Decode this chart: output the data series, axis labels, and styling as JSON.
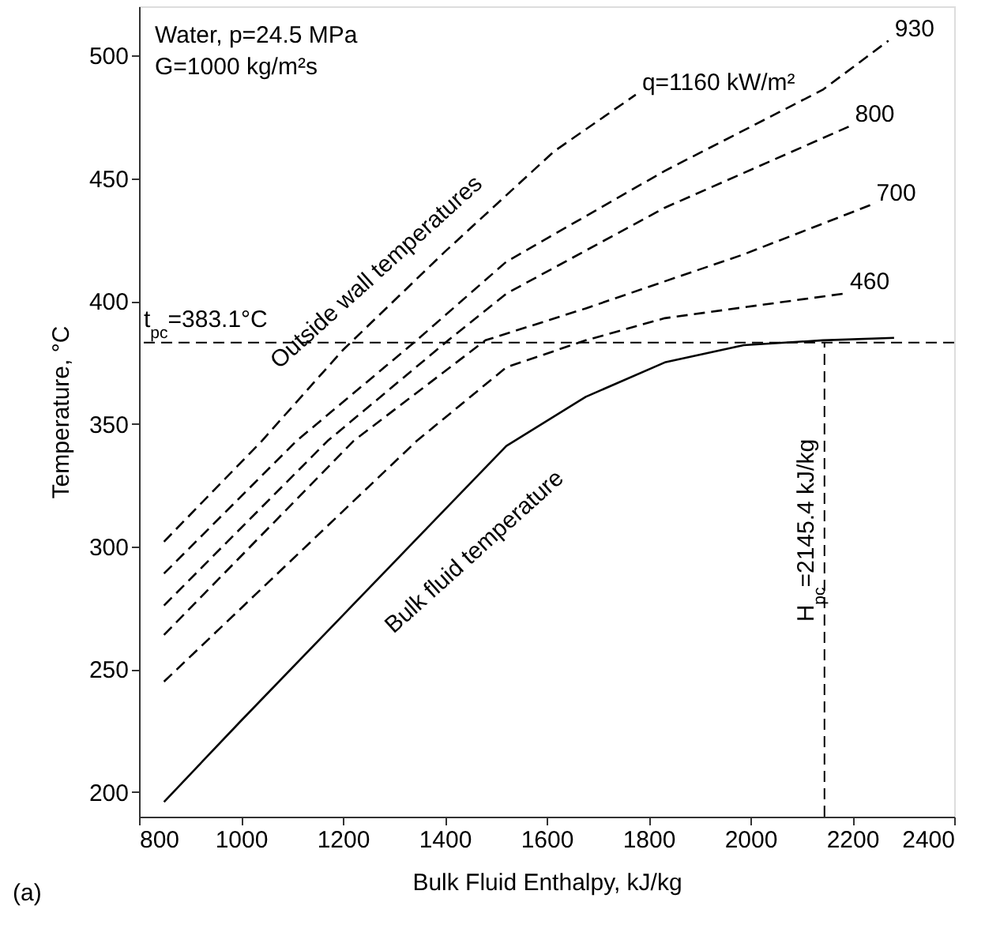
{
  "chart_data": {
    "type": "line",
    "xlabel": "Bulk Fluid Enthalpy, kJ/kg",
    "ylabel": "Temperature, °C",
    "xlim": [
      800,
      2400
    ],
    "xticks": [
      800,
      1000,
      1200,
      1400,
      1600,
      1800,
      2000,
      2200,
      2400
    ],
    "ylim": [
      190,
      520
    ],
    "yticks": [
      200,
      250,
      300,
      350,
      400,
      450,
      500
    ],
    "grid": false,
    "marker": "none",
    "series": [
      {
        "name": "q=1160 kW/m²",
        "color": "#000000",
        "line_style": "dashed",
        "x": [
          849,
          1041,
          1200,
          1400,
          1615,
          1775
        ],
        "values": [
          302,
          343,
          380,
          420,
          461,
          484
        ]
      },
      {
        "name": "930",
        "color": "#000000",
        "line_style": "dashed",
        "x": [
          849,
          1109,
          1345,
          1521,
          1832,
          2142,
          2271
        ],
        "values": [
          289,
          343,
          384,
          416,
          453,
          486,
          506
        ]
      },
      {
        "name": "800",
        "color": "#000000",
        "line_style": "dashed",
        "x": [
          849,
          1170,
          1407,
          1521,
          1832,
          2193
        ],
        "values": [
          276,
          343,
          384,
          403,
          438,
          471
        ]
      },
      {
        "name": "700",
        "color": "#000000",
        "line_style": "dashed",
        "x": [
          849,
          1221,
          1480,
          1677,
          1987,
          2235
        ],
        "values": [
          264,
          343,
          384,
          397,
          419,
          439
        ]
      },
      {
        "name": "460",
        "color": "#000000",
        "line_style": "dashed",
        "x": [
          849,
          1345,
          1521,
          1677,
          1832,
          2183
        ],
        "values": [
          245,
          343,
          373,
          384,
          393,
          403
        ]
      },
      {
        "color": "#000000",
        "line_style": "solid",
        "x": [
          849,
          1000,
          1200,
          1400,
          1521,
          1677,
          1832,
          1987,
          2142,
          2282
        ],
        "values": [
          196,
          229,
          272,
          315,
          341,
          361,
          375,
          382,
          384,
          385
        ]
      }
    ],
    "ref_lines": [
      {
        "axis": "y",
        "value": 383.1,
        "label": "t$_{pc}$=383.1°C",
        "line_style": "dashed",
        "color": "#000000"
      },
      {
        "axis": "x",
        "value": 2145.4,
        "label": "H$_{pc}$=2145.4 kJ/kg",
        "line_style": "dashed",
        "color": "#000000"
      }
    ],
    "annotations": [
      "Water, p=24.5 MPa",
      "G=1000 kg/m²s",
      "(a)",
      "Outside wall temperatures",
      "Bulk fluid temperature"
    ]
  }
}
